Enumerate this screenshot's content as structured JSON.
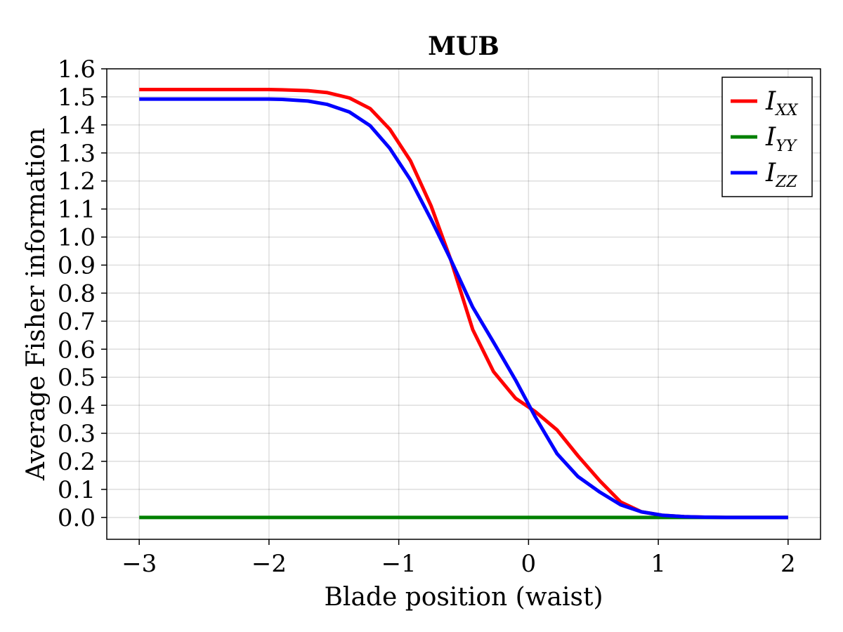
{
  "chart_data": {
    "type": "line",
    "title": "MUB",
    "xlabel": "Blade position (waist)",
    "ylabel": "Average Fisher information",
    "xlim": [
      -3.25,
      2.25
    ],
    "ylim": [
      -0.078,
      1.6
    ],
    "grid": true,
    "legend_position": "top-right",
    "x_ticks": [
      -3,
      -2,
      -1,
      0,
      1,
      2
    ],
    "x_tick_labels": [
      "−3",
      "−2",
      "−1",
      "0",
      "1",
      "2"
    ],
    "y_ticks": [
      0.0,
      0.1,
      0.2,
      0.3,
      0.4,
      0.5,
      0.6,
      0.7,
      0.8,
      0.9,
      1.0,
      1.1,
      1.2,
      1.3,
      1.4,
      1.5,
      1.6
    ],
    "y_tick_labels": [
      "0.0",
      "0.1",
      "0.2",
      "0.3",
      "0.4",
      "0.5",
      "0.6",
      "0.7",
      "0.8",
      "0.9",
      "1.0",
      "1.1",
      "1.2",
      "1.3",
      "1.4",
      "1.5",
      "1.6"
    ],
    "x": [
      -3.0,
      -2.0,
      -1.9,
      -1.7,
      -1.55,
      -1.38,
      -1.22,
      -1.07,
      -0.91,
      -0.75,
      -0.6,
      -0.43,
      -0.27,
      -0.1,
      0.05,
      0.22,
      0.38,
      0.55,
      0.71,
      0.87,
      1.03,
      1.2,
      1.36,
      1.52,
      2.0
    ],
    "series": [
      {
        "name": "I",
        "name_sub": "XX",
        "color": "#ff0000",
        "values": [
          1.526,
          1.526,
          1.525,
          1.522,
          1.515,
          1.496,
          1.458,
          1.385,
          1.272,
          1.11,
          0.92,
          0.67,
          0.52,
          0.425,
          0.378,
          0.312,
          0.22,
          0.13,
          0.055,
          0.02,
          0.008,
          0.003,
          0.001,
          0.0,
          0.0
        ]
      },
      {
        "name": "I",
        "name_sub": "YY",
        "color": "#008000",
        "values": [
          0.0,
          0.0,
          0.0,
          0.0,
          0.0,
          0.0,
          0.0,
          0.0,
          0.0,
          0.0,
          0.0,
          0.0,
          0.0,
          0.0,
          0.0,
          0.0,
          0.0,
          0.0,
          0.0,
          0.0,
          0.0,
          0.0,
          0.0,
          0.0,
          0.0
        ]
      },
      {
        "name": "I",
        "name_sub": "ZZ",
        "color": "#0000ff",
        "values": [
          1.492,
          1.492,
          1.491,
          1.485,
          1.473,
          1.446,
          1.397,
          1.317,
          1.204,
          1.062,
          0.92,
          0.75,
          0.625,
          0.49,
          0.36,
          0.227,
          0.146,
          0.09,
          0.045,
          0.02,
          0.008,
          0.003,
          0.001,
          0.0,
          0.0
        ]
      }
    ]
  }
}
